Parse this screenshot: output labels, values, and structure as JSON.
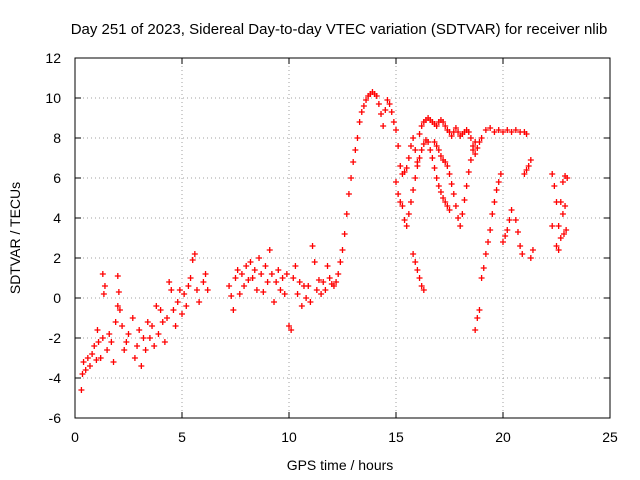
{
  "chart_data": {
    "type": "scatter",
    "title": "Day 251 of 2023, Sidereal Day-to-day VTEC variation (SDTVAR) for receiver nlib",
    "xlabel": "GPS time / hours",
    "ylabel": "SDTVAR / TECUs",
    "xlim": [
      0,
      25
    ],
    "ylim": [
      -6,
      12
    ],
    "xticks": [
      "0",
      "5",
      "10",
      "15",
      "20",
      "25"
    ],
    "yticks": [
      "-6",
      "-4",
      "-2",
      "0",
      "2",
      "4",
      "6",
      "8",
      "10",
      "12"
    ],
    "grid": true,
    "marker": "+",
    "marker_color": "#ff0000",
    "series": [
      {
        "name": "SDTVAR",
        "points": [
          [
            0.3,
            -4.6
          ],
          [
            0.35,
            -3.8
          ],
          [
            0.4,
            -3.2
          ],
          [
            0.5,
            -3.6
          ],
          [
            0.6,
            -3.0
          ],
          [
            0.7,
            -3.4
          ],
          [
            0.8,
            -2.8
          ],
          [
            0.9,
            -2.4
          ],
          [
            1.0,
            -3.1
          ],
          [
            1.05,
            -1.6
          ],
          [
            1.1,
            -2.2
          ],
          [
            1.2,
            -3.0
          ],
          [
            1.3,
            -2.0
          ],
          [
            1.3,
            1.2
          ],
          [
            1.35,
            0.2
          ],
          [
            1.4,
            0.6
          ],
          [
            1.5,
            -2.6
          ],
          [
            1.6,
            -1.8
          ],
          [
            1.7,
            -2.2
          ],
          [
            1.8,
            -3.2
          ],
          [
            1.9,
            -1.2
          ],
          [
            2.0,
            -0.4
          ],
          [
            2.0,
            1.1
          ],
          [
            2.05,
            0.3
          ],
          [
            2.1,
            -0.6
          ],
          [
            2.2,
            -1.4
          ],
          [
            2.3,
            -2.6
          ],
          [
            2.4,
            -2.2
          ],
          [
            2.5,
            -1.8
          ],
          [
            2.7,
            -1.0
          ],
          [
            2.8,
            -3.0
          ],
          [
            2.9,
            -2.4
          ],
          [
            3.0,
            -1.6
          ],
          [
            3.1,
            -3.4
          ],
          [
            3.2,
            -2.0
          ],
          [
            3.3,
            -2.6
          ],
          [
            3.4,
            -1.2
          ],
          [
            3.5,
            -2.0
          ],
          [
            3.6,
            -1.4
          ],
          [
            3.7,
            -2.4
          ],
          [
            3.8,
            -0.4
          ],
          [
            3.9,
            -1.8
          ],
          [
            4.0,
            -0.6
          ],
          [
            4.1,
            -1.2
          ],
          [
            4.2,
            -2.2
          ],
          [
            4.3,
            -1.0
          ],
          [
            4.4,
            0.8
          ],
          [
            4.5,
            0.4
          ],
          [
            4.6,
            -0.6
          ],
          [
            4.7,
            -1.4
          ],
          [
            4.8,
            -0.2
          ],
          [
            4.9,
            0.4
          ],
          [
            5.0,
            -0.8
          ],
          [
            5.1,
            0.2
          ],
          [
            5.2,
            -0.4
          ],
          [
            5.3,
            0.6
          ],
          [
            5.4,
            1.0
          ],
          [
            5.5,
            1.9
          ],
          [
            5.6,
            2.2
          ],
          [
            5.7,
            0.4
          ],
          [
            5.8,
            -0.2
          ],
          [
            6.0,
            0.8
          ],
          [
            6.1,
            1.2
          ],
          [
            6.2,
            0.4
          ],
          [
            7.2,
            0.6
          ],
          [
            7.3,
            0.1
          ],
          [
            7.4,
            -0.6
          ],
          [
            7.5,
            1.0
          ],
          [
            7.6,
            1.4
          ],
          [
            7.7,
            0.2
          ],
          [
            7.8,
            1.2
          ],
          [
            7.9,
            0.6
          ],
          [
            8.0,
            1.6
          ],
          [
            8.1,
            0.9
          ],
          [
            8.2,
            1.8
          ],
          [
            8.3,
            1.0
          ],
          [
            8.4,
            1.4
          ],
          [
            8.5,
            0.4
          ],
          [
            8.6,
            2.0
          ],
          [
            8.7,
            1.2
          ],
          [
            8.8,
            0.3
          ],
          [
            8.9,
            1.6
          ],
          [
            9.0,
            0.8
          ],
          [
            9.1,
            2.4
          ],
          [
            9.2,
            1.2
          ],
          [
            9.3,
            -0.2
          ],
          [
            9.4,
            0.8
          ],
          [
            9.5,
            1.4
          ],
          [
            9.6,
            0.4
          ],
          [
            9.7,
            1.0
          ],
          [
            9.8,
            0.2
          ],
          [
            9.9,
            1.2
          ],
          [
            10.0,
            -1.4
          ],
          [
            10.1,
            -1.6
          ],
          [
            10.2,
            1.0
          ],
          [
            10.3,
            1.6
          ],
          [
            10.4,
            0.2
          ],
          [
            10.5,
            0.8
          ],
          [
            10.6,
            -0.4
          ],
          [
            10.7,
            0.6
          ],
          [
            10.8,
            0.0
          ],
          [
            10.9,
            0.6
          ],
          [
            11.0,
            -0.2
          ],
          [
            11.1,
            2.6
          ],
          [
            11.2,
            1.8
          ],
          [
            11.3,
            0.4
          ],
          [
            11.4,
            0.9
          ],
          [
            11.5,
            0.2
          ],
          [
            11.6,
            0.8
          ],
          [
            11.7,
            0.4
          ],
          [
            11.8,
            1.6
          ],
          [
            11.9,
            1.0
          ],
          [
            12.0,
            0.7
          ],
          [
            12.1,
            0.6
          ],
          [
            12.2,
            0.8
          ],
          [
            12.3,
            1.2
          ],
          [
            12.4,
            1.8
          ],
          [
            12.5,
            2.4
          ],
          [
            12.6,
            3.2
          ],
          [
            12.7,
            4.2
          ],
          [
            12.8,
            5.2
          ],
          [
            12.9,
            6.0
          ],
          [
            13.0,
            6.8
          ],
          [
            13.1,
            7.4
          ],
          [
            13.2,
            8.0
          ],
          [
            13.3,
            8.8
          ],
          [
            13.4,
            9.3
          ],
          [
            13.5,
            9.6
          ],
          [
            13.6,
            9.9
          ],
          [
            13.7,
            10.1
          ],
          [
            13.8,
            10.2
          ],
          [
            13.9,
            10.3
          ],
          [
            14.0,
            10.2
          ],
          [
            14.1,
            10.1
          ],
          [
            14.2,
            9.7
          ],
          [
            14.3,
            9.2
          ],
          [
            14.4,
            8.6
          ],
          [
            14.5,
            9.4
          ],
          [
            14.6,
            9.9
          ],
          [
            14.7,
            9.7
          ],
          [
            14.8,
            9.3
          ],
          [
            14.9,
            8.8
          ],
          [
            15.0,
            8.4
          ],
          [
            15.1,
            7.6
          ],
          [
            15.2,
            6.6
          ],
          [
            15.3,
            6.2
          ],
          [
            15.4,
            6.3
          ],
          [
            15.5,
            6.5
          ],
          [
            15.6,
            7.0
          ],
          [
            15.7,
            7.6
          ],
          [
            15.8,
            8.0
          ],
          [
            15.9,
            7.4
          ],
          [
            16.0,
            6.8
          ],
          [
            16.1,
            8.2
          ],
          [
            16.2,
            8.6
          ],
          [
            16.3,
            8.8
          ],
          [
            16.4,
            8.9
          ],
          [
            16.5,
            9.0
          ],
          [
            16.6,
            8.9
          ],
          [
            16.7,
            8.8
          ],
          [
            16.8,
            8.7
          ],
          [
            16.9,
            8.6
          ],
          [
            17.0,
            8.8
          ],
          [
            17.1,
            8.9
          ],
          [
            17.2,
            8.8
          ],
          [
            17.3,
            8.6
          ],
          [
            17.4,
            8.4
          ],
          [
            17.5,
            8.3
          ],
          [
            17.6,
            8.1
          ],
          [
            17.7,
            8.3
          ],
          [
            17.8,
            8.5
          ],
          [
            17.9,
            8.3
          ],
          [
            18.0,
            8.1
          ],
          [
            18.1,
            8.2
          ],
          [
            18.2,
            8.3
          ],
          [
            18.3,
            8.4
          ],
          [
            18.4,
            8.3
          ],
          [
            18.5,
            8.0
          ],
          [
            18.6,
            7.6
          ],
          [
            18.7,
            7.2
          ],
          [
            18.8,
            7.5
          ],
          [
            18.9,
            7.8
          ],
          [
            19.0,
            8.0
          ],
          [
            19.2,
            8.4
          ],
          [
            19.4,
            8.5
          ],
          [
            19.6,
            8.3
          ],
          [
            19.8,
            8.4
          ],
          [
            20.0,
            8.3
          ],
          [
            20.2,
            8.4
          ],
          [
            20.4,
            8.3
          ],
          [
            20.6,
            8.4
          ],
          [
            20.8,
            8.3
          ],
          [
            21.0,
            8.3
          ],
          [
            21.1,
            8.2
          ],
          [
            15.4,
            3.9
          ],
          [
            15.5,
            3.6
          ],
          [
            15.6,
            4.2
          ],
          [
            15.7,
            4.8
          ],
          [
            15.8,
            5.4
          ],
          [
            15.9,
            6.0
          ],
          [
            16.0,
            6.6
          ],
          [
            16.1,
            7.0
          ],
          [
            16.2,
            7.4
          ],
          [
            16.3,
            7.7
          ],
          [
            16.4,
            7.9
          ],
          [
            16.5,
            7.8
          ],
          [
            16.6,
            7.4
          ],
          [
            16.7,
            7.0
          ],
          [
            16.8,
            6.5
          ],
          [
            16.9,
            6.0
          ],
          [
            17.0,
            5.6
          ],
          [
            17.1,
            5.3
          ],
          [
            17.2,
            5.0
          ],
          [
            17.3,
            4.8
          ],
          [
            17.4,
            4.6
          ],
          [
            17.5,
            4.4
          ],
          [
            15.0,
            5.8
          ],
          [
            15.1,
            5.2
          ],
          [
            15.2,
            4.8
          ],
          [
            15.3,
            4.6
          ],
          [
            16.8,
            7.8
          ],
          [
            16.9,
            7.6
          ],
          [
            17.0,
            7.4
          ],
          [
            17.1,
            7.1
          ],
          [
            17.2,
            6.9
          ],
          [
            17.3,
            6.8
          ],
          [
            17.4,
            6.6
          ],
          [
            17.5,
            6.2
          ],
          [
            17.6,
            5.7
          ],
          [
            17.7,
            5.2
          ],
          [
            17.8,
            4.6
          ],
          [
            17.9,
            4.0
          ],
          [
            18.0,
            3.6
          ],
          [
            18.1,
            4.2
          ],
          [
            18.2,
            4.9
          ],
          [
            18.3,
            5.6
          ],
          [
            18.4,
            6.3
          ],
          [
            18.5,
            6.9
          ],
          [
            18.6,
            7.4
          ],
          [
            18.7,
            7.8
          ],
          [
            15.8,
            2.2
          ],
          [
            15.9,
            1.8
          ],
          [
            16.0,
            1.4
          ],
          [
            16.1,
            1.0
          ],
          [
            16.2,
            0.6
          ],
          [
            16.3,
            0.4
          ],
          [
            18.7,
            -1.6
          ],
          [
            18.8,
            -1.0
          ],
          [
            18.9,
            -0.6
          ],
          [
            19.0,
            1.0
          ],
          [
            19.1,
            1.5
          ],
          [
            19.2,
            2.2
          ],
          [
            19.3,
            2.8
          ],
          [
            19.4,
            3.4
          ],
          [
            19.5,
            4.2
          ],
          [
            19.6,
            4.8
          ],
          [
            19.7,
            5.4
          ],
          [
            19.8,
            5.8
          ],
          [
            19.9,
            6.2
          ],
          [
            20.0,
            2.8
          ],
          [
            20.1,
            3.1
          ],
          [
            20.2,
            3.4
          ],
          [
            20.3,
            3.9
          ],
          [
            20.4,
            4.4
          ],
          [
            20.6,
            3.9
          ],
          [
            20.7,
            3.3
          ],
          [
            20.8,
            2.6
          ],
          [
            20.9,
            2.2
          ],
          [
            21.0,
            6.2
          ],
          [
            21.1,
            6.4
          ],
          [
            21.2,
            6.6
          ],
          [
            21.3,
            6.9
          ],
          [
            21.3,
            2.0
          ],
          [
            21.4,
            2.4
          ],
          [
            22.3,
            6.2
          ],
          [
            22.4,
            5.6
          ],
          [
            22.5,
            4.8
          ],
          [
            22.6,
            3.6
          ],
          [
            22.7,
            3.0
          ],
          [
            22.8,
            5.8
          ],
          [
            22.9,
            6.1
          ],
          [
            22.3,
            3.6
          ],
          [
            22.5,
            2.6
          ],
          [
            22.6,
            2.4
          ],
          [
            22.7,
            4.8
          ],
          [
            22.8,
            4.2
          ],
          [
            22.85,
            3.2
          ],
          [
            22.9,
            4.6
          ],
          [
            22.95,
            3.4
          ],
          [
            23.0,
            6.0
          ]
        ]
      }
    ]
  }
}
